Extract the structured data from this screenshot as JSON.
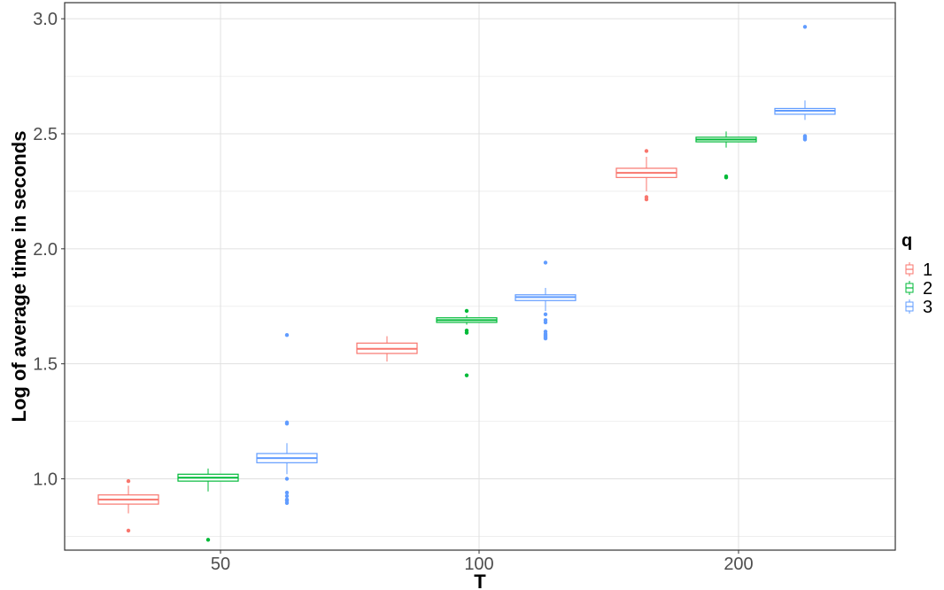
{
  "chart_data": {
    "type": "boxplot",
    "title": "",
    "xlabel": "T",
    "ylabel": "Log of average time in seconds",
    "categories": [
      "50",
      "100",
      "200"
    ],
    "ylim": [
      0.69,
      3.07
    ],
    "yticks": [
      1.0,
      1.5,
      2.0,
      2.5,
      3.0
    ],
    "ytick_labels": [
      "1.0",
      "1.5",
      "2.0",
      "2.5",
      "3.0"
    ],
    "grid": true,
    "legend": {
      "title": "q",
      "position": "right"
    },
    "series": [
      {
        "name": "1",
        "color": "#F8766D",
        "boxes": [
          {
            "category": "50",
            "whisker_low": 0.85,
            "q1": 0.89,
            "median": 0.91,
            "q3": 0.93,
            "whisker_high": 0.97,
            "outliers": [
              0.99,
              0.775
            ]
          },
          {
            "category": "100",
            "whisker_low": 1.51,
            "q1": 1.545,
            "median": 1.565,
            "q3": 1.59,
            "whisker_high": 1.62,
            "outliers": []
          },
          {
            "category": "200",
            "whisker_low": 2.25,
            "q1": 2.31,
            "median": 2.33,
            "q3": 2.35,
            "whisker_high": 2.4,
            "outliers": [
              2.425,
              2.225,
              2.215
            ]
          }
        ]
      },
      {
        "name": "2",
        "color": "#00BA38",
        "boxes": [
          {
            "category": "50",
            "whisker_low": 0.945,
            "q1": 0.99,
            "median": 1.005,
            "q3": 1.02,
            "whisker_high": 1.045,
            "outliers": [
              0.735
            ]
          },
          {
            "category": "100",
            "whisker_low": 1.67,
            "q1": 1.68,
            "median": 1.69,
            "q3": 1.7,
            "whisker_high": 1.71,
            "outliers": [
              1.73,
              1.645,
              1.635,
              1.45
            ]
          },
          {
            "category": "200",
            "whisker_low": 2.44,
            "q1": 2.465,
            "median": 2.475,
            "q3": 2.485,
            "whisker_high": 2.51,
            "outliers": [
              2.315,
              2.31
            ]
          }
        ]
      },
      {
        "name": "3",
        "color": "#619CFF",
        "boxes": [
          {
            "category": "50",
            "whisker_low": 1.02,
            "q1": 1.07,
            "median": 1.09,
            "q3": 1.11,
            "whisker_high": 1.155,
            "outliers": [
              1.625,
              1.245,
              1.24,
              1.0,
              0.94,
              0.925,
              0.91,
              0.905,
              0.895
            ]
          },
          {
            "category": "100",
            "whisker_low": 1.73,
            "q1": 1.775,
            "median": 1.79,
            "q3": 1.8,
            "whisker_high": 1.83,
            "outliers": [
              1.94,
              1.715,
              1.69,
              1.68,
              1.64,
              1.63,
              1.625,
              1.62,
              1.615,
              1.61
            ]
          },
          {
            "category": "200",
            "whisker_low": 2.56,
            "q1": 2.585,
            "median": 2.6,
            "q3": 2.61,
            "whisker_high": 2.645,
            "outliers": [
              2.965,
              2.49,
              2.485,
              2.48,
              2.475
            ]
          }
        ]
      }
    ]
  }
}
